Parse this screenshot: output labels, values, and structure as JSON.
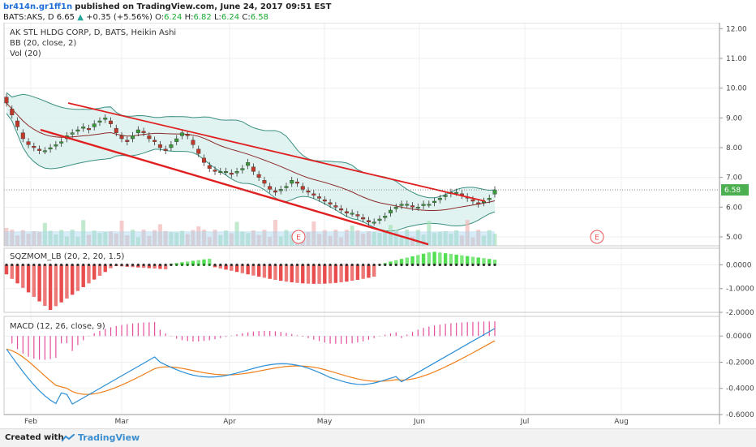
{
  "header": {
    "user": "br414n.gr1ff1n",
    "published": "published on TradingView.com, June 24, 2017 09:51 EST",
    "symbol": "BATS:AKS, D",
    "price": "6.65",
    "change": "+0.35 (+5.56%)",
    "o_label": "O:",
    "o": "6.24",
    "h_label": "H:",
    "h": "6.82",
    "l_label": "L:",
    "l": "6.24",
    "c_label": "C:",
    "c": "6.58"
  },
  "legend": {
    "main": "AK STL HLDG CORP, D, BATS, Heikin Ashi",
    "bb": "BB (20, close, 2)",
    "vol": "Vol (20)",
    "sqz": "SQZMOM_LB (20, 2, 20, 1.5)",
    "macd": "MACD (12, 26, close, 9)"
  },
  "earnings_marker": "E",
  "last_price_label": "6.58",
  "footer": {
    "created": "Created with",
    "brand": "TradingView"
  },
  "colors": {
    "up": "#3a9a3a",
    "down": "#c0392b",
    "bb": "#3a8f80",
    "bb_fill": "#d9f0ec",
    "basis": "#8b2a2a",
    "trend": "#e02020",
    "volume": "#a6d4ee",
    "macd": "#2c8fd6",
    "signal": "#ef7f1a",
    "hist": "#e54d9c",
    "sqz_pos": "#52e052",
    "sqz_neg": "#e84c4c"
  },
  "chart_data": [
    {
      "type": "candlestick",
      "title": "AK STL HLDG CORP, D, BATS, Heikin Ashi",
      "ylim": [
        4.7,
        12.2
      ],
      "y_ticks": [
        "5.00",
        "6.00",
        "7.00",
        "8.00",
        "9.00",
        "10.00",
        "11.00",
        "12.00"
      ],
      "x_ticks": [
        "Feb",
        "Mar",
        "Apr",
        "May",
        "Jun",
        "Jul",
        "Aug"
      ],
      "close_approx": [
        9.5,
        9.1,
        8.7,
        8.3,
        8.1,
        8.0,
        7.9,
        7.9,
        8.0,
        8.1,
        8.2,
        8.4,
        8.5,
        8.6,
        8.7,
        8.6,
        8.8,
        8.9,
        9.0,
        8.8,
        8.5,
        8.3,
        8.2,
        8.4,
        8.6,
        8.5,
        8.3,
        8.2,
        8.0,
        7.9,
        8.1,
        8.3,
        8.5,
        8.4,
        8.1,
        7.8,
        7.5,
        7.3,
        7.2,
        7.2,
        7.2,
        7.1,
        7.2,
        7.3,
        7.5,
        7.2,
        7.0,
        6.8,
        6.6,
        6.5,
        6.6,
        6.7,
        6.9,
        6.8,
        6.6,
        6.5,
        6.4,
        6.3,
        6.2,
        6.1,
        6.0,
        5.9,
        5.8,
        5.8,
        5.7,
        5.6,
        5.5,
        5.5,
        5.6,
        5.7,
        5.9,
        6.0,
        6.1,
        6.1,
        6.0,
        6.0,
        6.1,
        6.1,
        6.2,
        6.3,
        6.4,
        6.5,
        6.5,
        6.4,
        6.3,
        6.2,
        6.1,
        6.2,
        6.3,
        6.58
      ]
    },
    {
      "type": "bar",
      "title": "SQZMOM_LB (20, 2, 20, 1.5)",
      "ylim": [
        -2.0,
        0.7
      ],
      "y_ticks": [
        "0.0000",
        "-1.0000",
        "-2.0000"
      ]
    },
    {
      "type": "line",
      "title": "MACD (12, 26, close, 9)",
      "ylim": [
        -0.6,
        0.15
      ],
      "y_ticks": [
        "0.0000",
        "-0.2000",
        "-0.4000",
        "-0.6000"
      ]
    }
  ]
}
